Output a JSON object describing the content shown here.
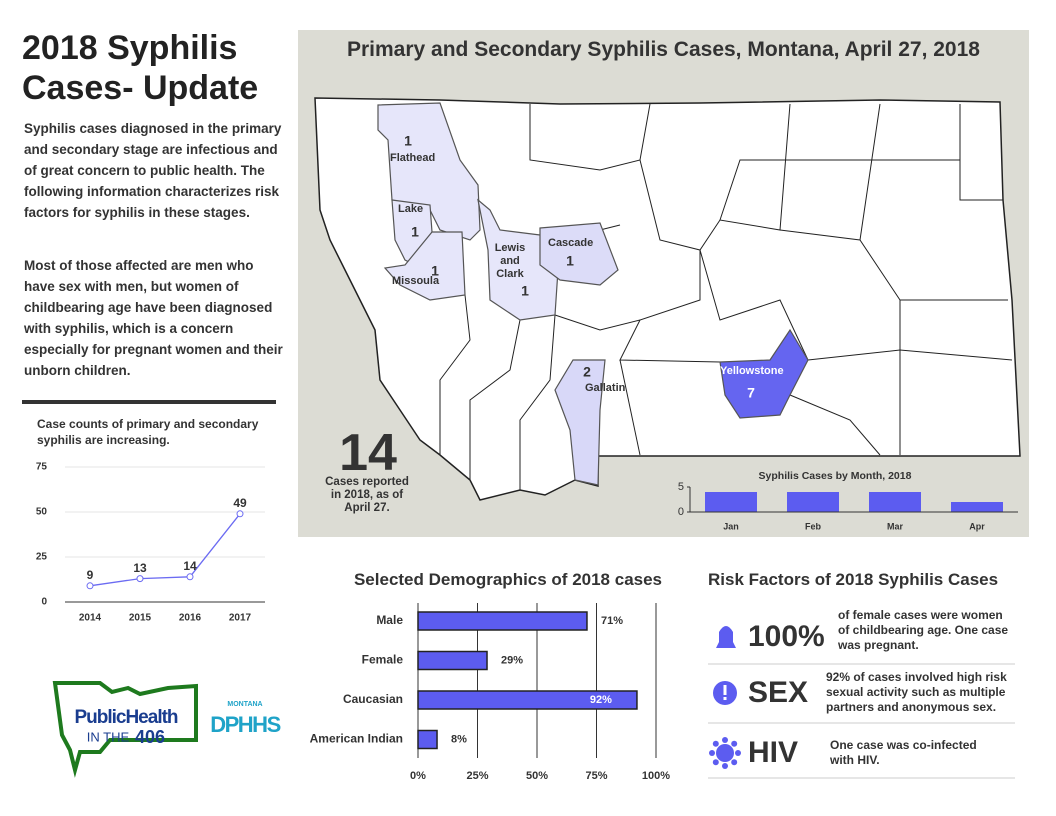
{
  "header": {
    "title": "2018 Syphilis Cases- Update",
    "paragraphs": [
      "Syphilis cases diagnosed in the primary and secondary stage are infectious and of great concern to public health.  The following information characterizes risk factors for syphilis in these stages.",
      "Most of those affected are men who have sex with men, but women of childbearing age have been diagnosed with syphilis, which is a concern especially for pregnant women and their unborn children."
    ]
  },
  "map": {
    "title": "Primary and Secondary Syphilis Cases, Montana, April 27, 2018",
    "counties": [
      {
        "name": "Flathead",
        "cases": 1,
        "color": "#e6e6fa"
      },
      {
        "name": "Lake",
        "cases": 1,
        "color": "#e6e6fa"
      },
      {
        "name": "Missoula",
        "cases": 1,
        "color": "#e6e6fa"
      },
      {
        "name": "Lewis and Clark",
        "cases": 1,
        "color": "#e6e6fa"
      },
      {
        "name": "Cascade",
        "cases": 1,
        "color": "#dcdcf8"
      },
      {
        "name": "Gallatin",
        "cases": 2,
        "color": "#d8d8f8"
      },
      {
        "name": "Yellowstone",
        "cases": 7,
        "color": "#6565f0"
      }
    ],
    "total": 14,
    "total_label": "Cases reported in 2018, as of April 27."
  },
  "chart_data": [
    {
      "type": "line",
      "title": "Case counts of primary and secondary syphilis are increasing.",
      "x": [
        2014,
        2015,
        2016,
        2017
      ],
      "values": [
        9,
        13,
        14,
        49
      ],
      "color": "#6b6bf2",
      "xlim": [
        2013.5,
        2017.5
      ],
      "xticks": [
        2014,
        2015,
        2016,
        2017
      ],
      "ylim": [
        0,
        75
      ],
      "yticks": [
        0,
        25,
        50,
        75
      ],
      "grid": true
    },
    {
      "type": "bar",
      "title": "Syphilis Cases by Month, 2018",
      "categories": [
        "Jan",
        "Feb",
        "Mar",
        "Apr"
      ],
      "values": [
        4,
        4,
        4,
        2
      ],
      "color": "#5c5cf0",
      "ylim": [
        0,
        5
      ],
      "yticks": [
        0,
        5
      ]
    },
    {
      "type": "hbar",
      "title": "Selected Demographics of 2018 cases",
      "categories": [
        "Male",
        "Female",
        "Caucasian",
        "American Indian"
      ],
      "values": [
        71,
        29,
        92,
        8
      ],
      "value_labels": [
        "71%",
        "29%",
        "92%",
        "8%"
      ],
      "color": "#5c5cf0",
      "xlim": [
        0,
        100
      ],
      "xticks": [
        {
          "value": 0,
          "label": "0%"
        },
        {
          "value": 25,
          "label": "25%"
        },
        {
          "value": 50,
          "label": "50%"
        },
        {
          "value": 75,
          "label": "75%"
        },
        {
          "value": 100,
          "label": "100%"
        }
      ],
      "grid": true
    }
  ],
  "risk_factors": {
    "title": "Risk Factors of 2018 Syphilis Cases",
    "items": [
      {
        "headline": "100%",
        "text": "of female cases were women of childbearing age. One case was pregnant."
      },
      {
        "headline": "SEX",
        "text": "92% of cases involved high risk sexual activity such as multiple partners and anonymous sex."
      },
      {
        "headline": "HIV",
        "text": "One case was co-infected with HIV."
      }
    ]
  },
  "logos": {
    "public_health": [
      "PublicHealth",
      "IN THE",
      "406"
    ],
    "dphhs": [
      "MONTANA",
      "DPHHS"
    ]
  }
}
